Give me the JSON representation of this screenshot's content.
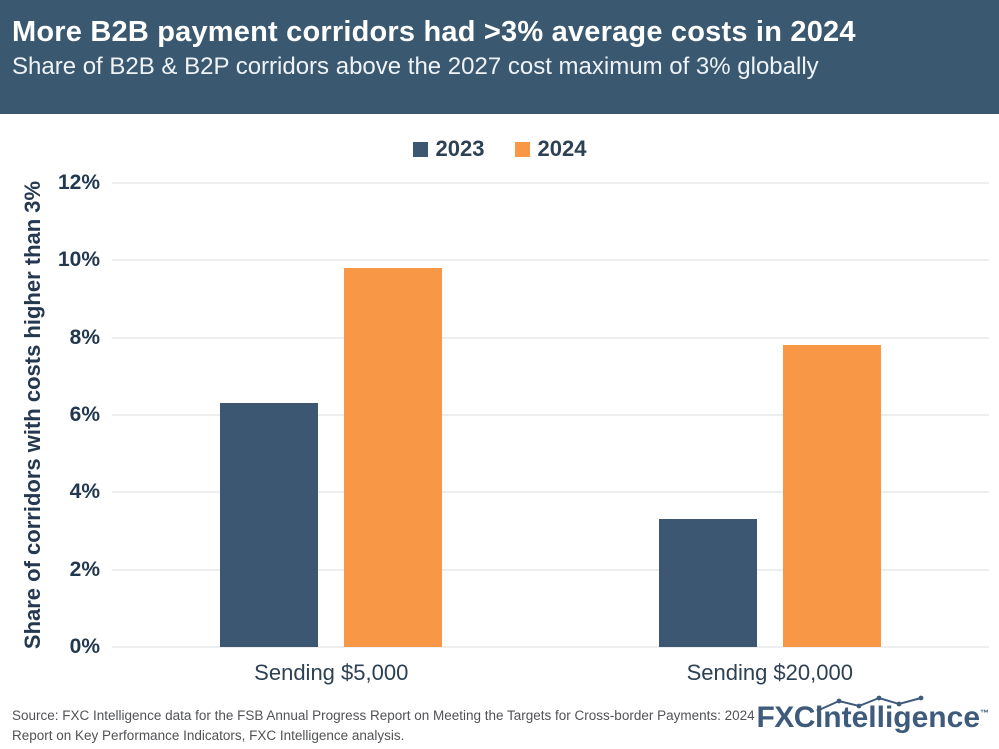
{
  "header": {
    "title": "More B2B payment corridors had >3% average costs in 2024",
    "subtitle": "Share of B2B & B2P corridors above the 2027 cost maximum of 3% globally"
  },
  "chart_data": {
    "type": "bar",
    "categories": [
      "Sending $5,000",
      "Sending $20,000"
    ],
    "series": [
      {
        "name": "2023",
        "color": "#3B5771",
        "values": [
          6.3,
          3.3
        ]
      },
      {
        "name": "2024",
        "color": "#F89846",
        "values": [
          9.8,
          7.8
        ]
      }
    ],
    "title": "More B2B payment corridors had >3% average costs in 2024",
    "xlabel": "",
    "ylabel": "Share of corridors with costs higher than 3%",
    "ylim": [
      0,
      12
    ],
    "ytick_values": [
      0,
      2,
      4,
      6,
      8,
      10,
      12
    ],
    "ytick_labels": [
      "0%",
      "2%",
      "4%",
      "6%",
      "8%",
      "10%",
      "12%"
    ],
    "grid": true,
    "legend_position": "top-center"
  },
  "footer": {
    "source": "Source: FXC Intelligence data for the FSB Annual Progress Report on Meeting the Targets for Cross-border Payments: 2024 Report on Key Performance Indicators, FXC Intelligence analysis.",
    "logo": {
      "bold": "FXC",
      "rest": "intelligence",
      "tm": "™"
    }
  },
  "colors": {
    "header_bg": "#3A5870",
    "bar_2023": "#3B5771",
    "bar_2024": "#F89846",
    "gridline": "#ECEEF0",
    "axis_text": "#22384E",
    "label_ink": "#2D4154",
    "footer_text": "#515255",
    "logo": "#3E5B7C"
  }
}
